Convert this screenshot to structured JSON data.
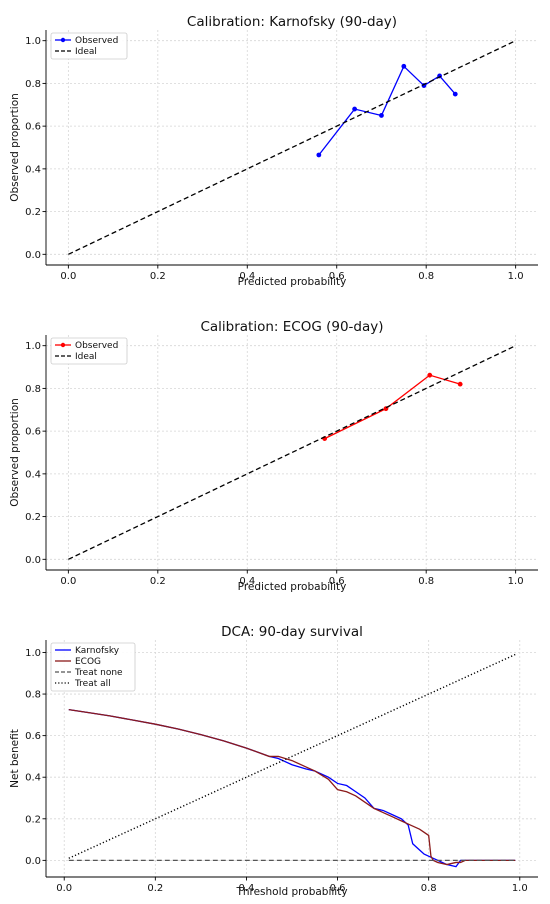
{
  "chart_data": [
    {
      "type": "line",
      "title": "Calibration: Karnofsky (90-day)",
      "xlabel": "Predicted probability",
      "ylabel": "Observed proportion",
      "xlim": [
        -0.05,
        1.05
      ],
      "ylim": [
        -0.05,
        1.05
      ],
      "xticks": [
        0.0,
        0.2,
        0.4,
        0.6,
        0.8,
        1.0
      ],
      "yticks": [
        0.0,
        0.2,
        0.4,
        0.6,
        0.8,
        1.0
      ],
      "grid": true,
      "legend": "top-left",
      "series": [
        {
          "name": "Observed",
          "color": "#0000ff",
          "style": "solid",
          "markers": true,
          "x": [
            0.56,
            0.64,
            0.7,
            0.75,
            0.795,
            0.83,
            0.865
          ],
          "y": [
            0.465,
            0.68,
            0.65,
            0.88,
            0.79,
            0.835,
            0.75
          ]
        },
        {
          "name": "Ideal",
          "color": "#000000",
          "style": "dashed",
          "markers": false,
          "x": [
            0.0,
            1.0
          ],
          "y": [
            0.0,
            1.0
          ]
        }
      ]
    },
    {
      "type": "line",
      "title": "Calibration: ECOG (90-day)",
      "xlabel": "Predicted probability",
      "ylabel": "Observed proportion",
      "xlim": [
        -0.05,
        1.05
      ],
      "ylim": [
        -0.05,
        1.05
      ],
      "xticks": [
        0.0,
        0.2,
        0.4,
        0.6,
        0.8,
        1.0
      ],
      "yticks": [
        0.0,
        0.2,
        0.4,
        0.6,
        0.8,
        1.0
      ],
      "grid": true,
      "legend": "top-left",
      "series": [
        {
          "name": "Observed",
          "color": "#ff0000",
          "style": "solid",
          "markers": true,
          "x": [
            0.573,
            0.71,
            0.808,
            0.876
          ],
          "y": [
            0.565,
            0.705,
            0.862,
            0.82
          ]
        },
        {
          "name": "Ideal",
          "color": "#000000",
          "style": "dashed",
          "markers": false,
          "x": [
            0.0,
            1.0
          ],
          "y": [
            0.0,
            1.0
          ]
        }
      ]
    },
    {
      "type": "line",
      "title": "DCA: 90-day survival",
      "xlabel": "Threshold probability",
      "ylabel": "Net benefit",
      "xlim": [
        -0.04,
        1.04
      ],
      "ylim": [
        -0.08,
        1.06
      ],
      "xticks": [
        0.0,
        0.2,
        0.4,
        0.6,
        0.8,
        1.0
      ],
      "yticks": [
        0.0,
        0.2,
        0.4,
        0.6,
        0.8,
        1.0
      ],
      "grid": true,
      "legend": "top-left",
      "series": [
        {
          "name": "Karnofsky",
          "color": "#0000ff",
          "style": "solid",
          "markers": false,
          "x": [
            0.01,
            0.05,
            0.1,
            0.15,
            0.2,
            0.25,
            0.3,
            0.35,
            0.4,
            0.45,
            0.47,
            0.5,
            0.53,
            0.55,
            0.58,
            0.6,
            0.62,
            0.64,
            0.66,
            0.68,
            0.7,
            0.72,
            0.74,
            0.755,
            0.765,
            0.78,
            0.79,
            0.8,
            0.81,
            0.82,
            0.84,
            0.86,
            0.87,
            0.88,
            0.9,
            0.95,
            0.99
          ],
          "y": [
            0.725,
            0.712,
            0.695,
            0.675,
            0.655,
            0.632,
            0.605,
            0.575,
            0.54,
            0.5,
            0.49,
            0.46,
            0.44,
            0.43,
            0.4,
            0.37,
            0.36,
            0.33,
            0.3,
            0.25,
            0.24,
            0.22,
            0.2,
            0.17,
            0.08,
            0.05,
            0.03,
            0.02,
            0.01,
            0.0,
            -0.02,
            -0.03,
            0.0,
            0.0,
            0.0,
            0.0,
            0.0
          ]
        },
        {
          "name": "ECOG",
          "color": "#8b1a1a",
          "style": "solid",
          "markers": false,
          "x": [
            0.01,
            0.05,
            0.1,
            0.15,
            0.2,
            0.25,
            0.3,
            0.35,
            0.4,
            0.45,
            0.47,
            0.5,
            0.53,
            0.55,
            0.58,
            0.6,
            0.62,
            0.64,
            0.66,
            0.68,
            0.7,
            0.72,
            0.74,
            0.76,
            0.78,
            0.8,
            0.805,
            0.81,
            0.82,
            0.84,
            0.86,
            0.87,
            0.88,
            0.9,
            0.95,
            0.99
          ],
          "y": [
            0.725,
            0.712,
            0.695,
            0.675,
            0.655,
            0.632,
            0.605,
            0.575,
            0.54,
            0.5,
            0.5,
            0.48,
            0.45,
            0.43,
            0.39,
            0.34,
            0.33,
            0.31,
            0.28,
            0.25,
            0.23,
            0.21,
            0.19,
            0.17,
            0.15,
            0.12,
            0.02,
            0.0,
            -0.01,
            -0.02,
            -0.01,
            -0.01,
            0.0,
            0.0,
            0.0,
            0.0
          ]
        },
        {
          "name": "Treat none",
          "color": "#555555",
          "style": "dashed",
          "markers": false,
          "x": [
            0.01,
            0.99
          ],
          "y": [
            0.0,
            0.0
          ]
        },
        {
          "name": "Treat all",
          "color": "#000000",
          "style": "dotted",
          "markers": false,
          "x": [
            0.01,
            0.99
          ],
          "y": [
            0.01,
            0.99
          ]
        }
      ]
    }
  ]
}
